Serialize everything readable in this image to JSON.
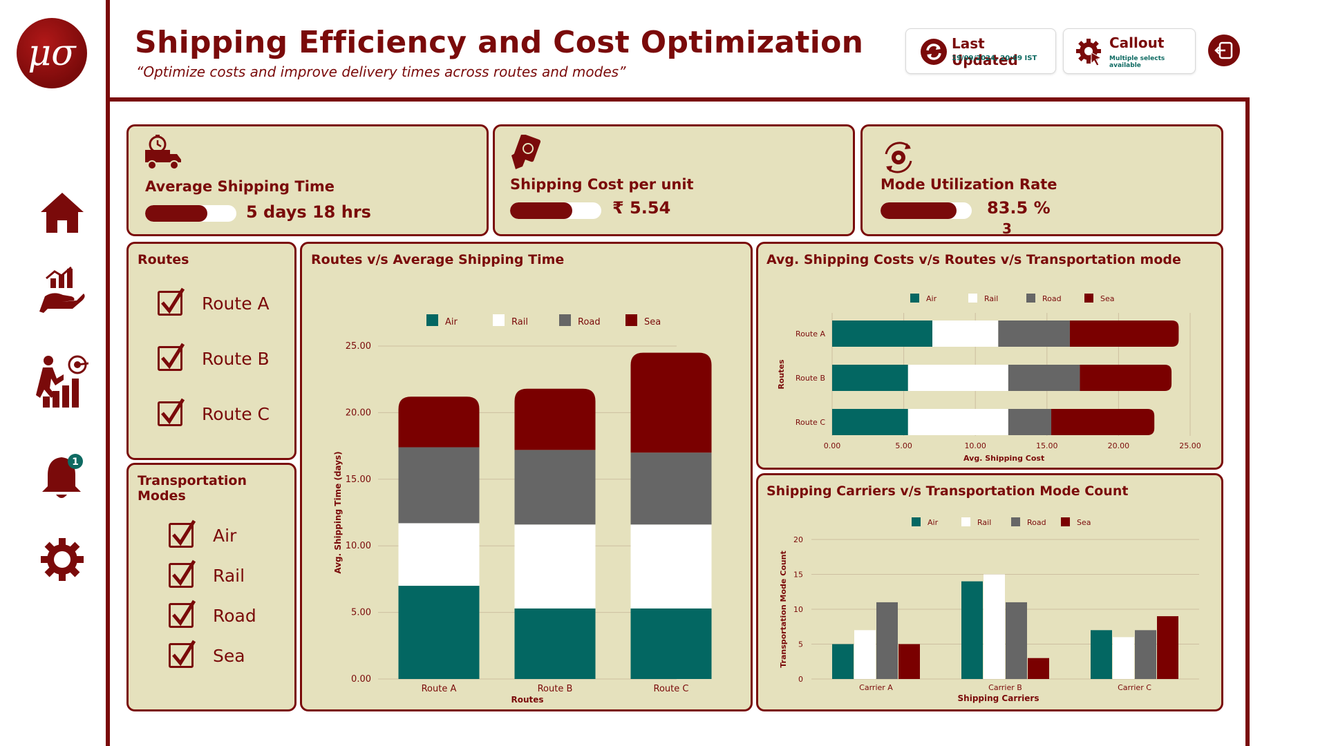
{
  "header": {
    "title": "Shipping Efficiency and Cost Optimization",
    "subtitle": "“Optimize costs and improve delivery times across routes and modes”",
    "last_updated_label": "Last Updated",
    "last_updated_value": "19/09/2024, 20:09 IST",
    "callout_label": "Callout",
    "callout_sub": "Multiple selects available",
    "logo_text": "μσ"
  },
  "sidebar": {
    "items": [
      {
        "name": "home-icon"
      },
      {
        "name": "hand-chart-icon"
      },
      {
        "name": "growth-target-icon"
      },
      {
        "name": "bell-icon",
        "badge": "1"
      },
      {
        "name": "gear-icon"
      }
    ]
  },
  "kpis": {
    "avg_shipping_time": {
      "title": "Average Shipping Time",
      "value": "5 days 18 hrs",
      "fill": 0.68
    },
    "cost_per_unit": {
      "title": "Shipping Cost per unit",
      "value": "₹ 5.54",
      "fill": 0.68
    },
    "mode_utilization": {
      "title": "Mode Utilization Rate",
      "value": "83.5  %",
      "extra": "3",
      "fill": 0.835
    }
  },
  "routes_filter": {
    "title": "Routes",
    "items": [
      "Route A",
      "Route B",
      "Route C"
    ]
  },
  "modes_filter": {
    "title": "Transportation Modes",
    "items": [
      "Air",
      "Rail",
      "Road",
      "Sea"
    ]
  },
  "colors": {
    "air": "#036762",
    "rail": "#ffffff",
    "road": "#666666",
    "sea": "#7a0000",
    "panel_bg": "#e5e1bd",
    "accent": "#7a0a0a"
  },
  "chart_data": [
    {
      "id": "routes-vs-time",
      "type": "bar",
      "stacked": true,
      "title": "Routes v/s Average Shipping Time",
      "xlabel": "Routes",
      "ylabel": "Avg. Shipping Time (days)",
      "categories": [
        "Route A",
        "Route B",
        "Route C"
      ],
      "ylim": [
        0,
        25
      ],
      "yticks": [
        "0.00",
        "5.00",
        "10.00",
        "15.00",
        "20.00",
        "25.00"
      ],
      "legend": "top",
      "series": [
        {
          "name": "Air",
          "values": [
            7.0,
            5.3,
            5.3
          ]
        },
        {
          "name": "Rail",
          "values": [
            4.7,
            6.3,
            6.3
          ]
        },
        {
          "name": "Road",
          "values": [
            5.7,
            5.6,
            5.4
          ]
        },
        {
          "name": "Sea",
          "values": [
            3.8,
            4.6,
            7.5
          ]
        }
      ]
    },
    {
      "id": "cost-vs-routes-mode",
      "type": "bar",
      "orientation": "horizontal",
      "stacked": true,
      "title": "Avg. Shipping Costs v/s Routes v/s Transportation mode",
      "xlabel": "Avg. Shipping Cost",
      "ylabel": "Routes",
      "categories": [
        "Route A",
        "Route B",
        "Route C"
      ],
      "xlim": [
        0,
        25
      ],
      "xticks": [
        "0.00",
        "5.00",
        "10.00",
        "15.00",
        "20.00",
        "25.00"
      ],
      "legend": "top",
      "series": [
        {
          "name": "Air",
          "values": [
            7.0,
            5.3,
            5.3
          ]
        },
        {
          "name": "Rail",
          "values": [
            4.6,
            7.0,
            7.0
          ]
        },
        {
          "name": "Road",
          "values": [
            5.0,
            5.0,
            3.0
          ]
        },
        {
          "name": "Sea",
          "values": [
            7.6,
            6.4,
            7.2
          ]
        }
      ]
    },
    {
      "id": "carriers-vs-mode",
      "type": "bar",
      "stacked": false,
      "title": "Shipping Carriers v/s Transportation Mode Count",
      "xlabel": "Shipping Carriers",
      "ylabel": "Transportation Mode Count",
      "categories": [
        "Carrier A",
        "Carrier B",
        "Carrier C"
      ],
      "ylim": [
        0,
        20
      ],
      "yticks": [
        "0",
        "5",
        "10",
        "15",
        "20"
      ],
      "legend": "top",
      "series": [
        {
          "name": "Air",
          "values": [
            5,
            14,
            7
          ]
        },
        {
          "name": "Rail",
          "values": [
            7,
            15,
            6
          ]
        },
        {
          "name": "Road",
          "values": [
            11,
            11,
            7
          ]
        },
        {
          "name": "Sea",
          "values": [
            5,
            3,
            9
          ]
        }
      ]
    }
  ]
}
